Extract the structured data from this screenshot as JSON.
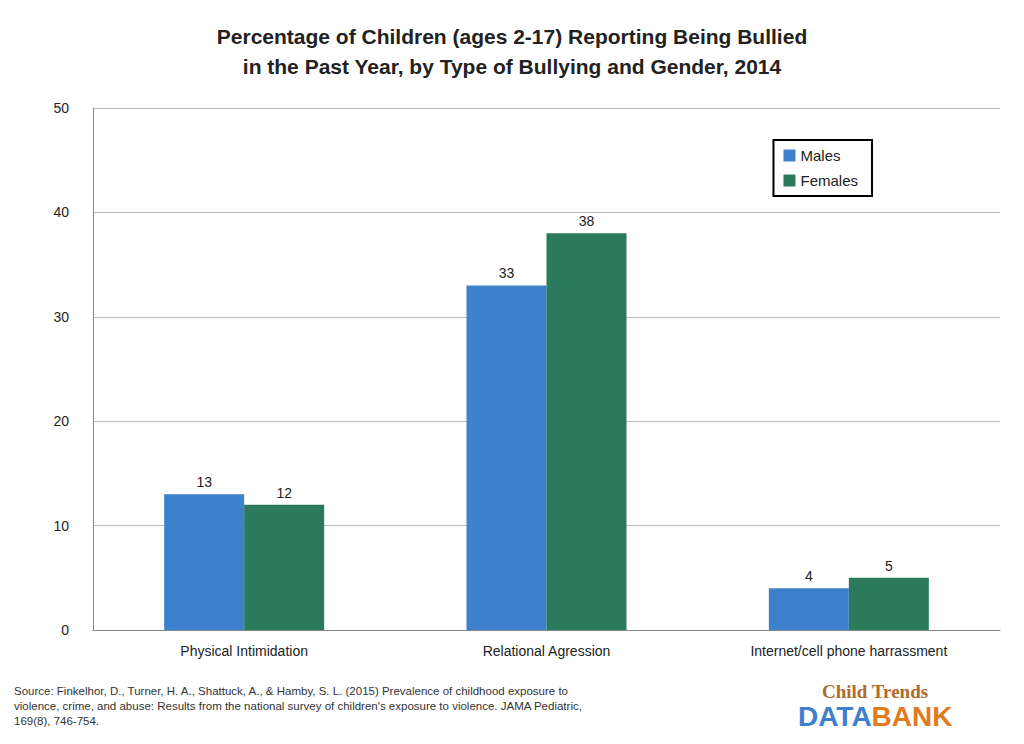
{
  "chart_data": {
    "type": "bar",
    "title": "Percentage of Children (ages 2-17) Reporting Being Bullied\nin the Past Year, by Type of Bullying and Gender, 2014",
    "categories": [
      "Physical Intimidation",
      "Relational Agression",
      "Internet/cell phone harrassment"
    ],
    "series": [
      {
        "name": "Males",
        "color": "#3d80cc",
        "values": [
          13,
          33,
          4
        ]
      },
      {
        "name": "Females",
        "color": "#2b7a5c",
        "values": [
          12,
          38,
          5
        ]
      }
    ],
    "ylim": [
      0,
      50
    ],
    "yticks": [
      0,
      10,
      20,
      30,
      40,
      50
    ],
    "grid": true,
    "legend": "upper right",
    "data_labels": true,
    "source": "Source: Finkelhor, D., Turner, H. A., Shattuck, A., & Hamby, S. L. (2015) Prevalence of childhood exposure to\nviolence, crime, and abuse: Results from the national survey of children's exposure to violence. JAMA Pediatric,\n169(8), 746-754.",
    "logo": [
      "Child Trends",
      "DATA",
      "BANK"
    ]
  }
}
